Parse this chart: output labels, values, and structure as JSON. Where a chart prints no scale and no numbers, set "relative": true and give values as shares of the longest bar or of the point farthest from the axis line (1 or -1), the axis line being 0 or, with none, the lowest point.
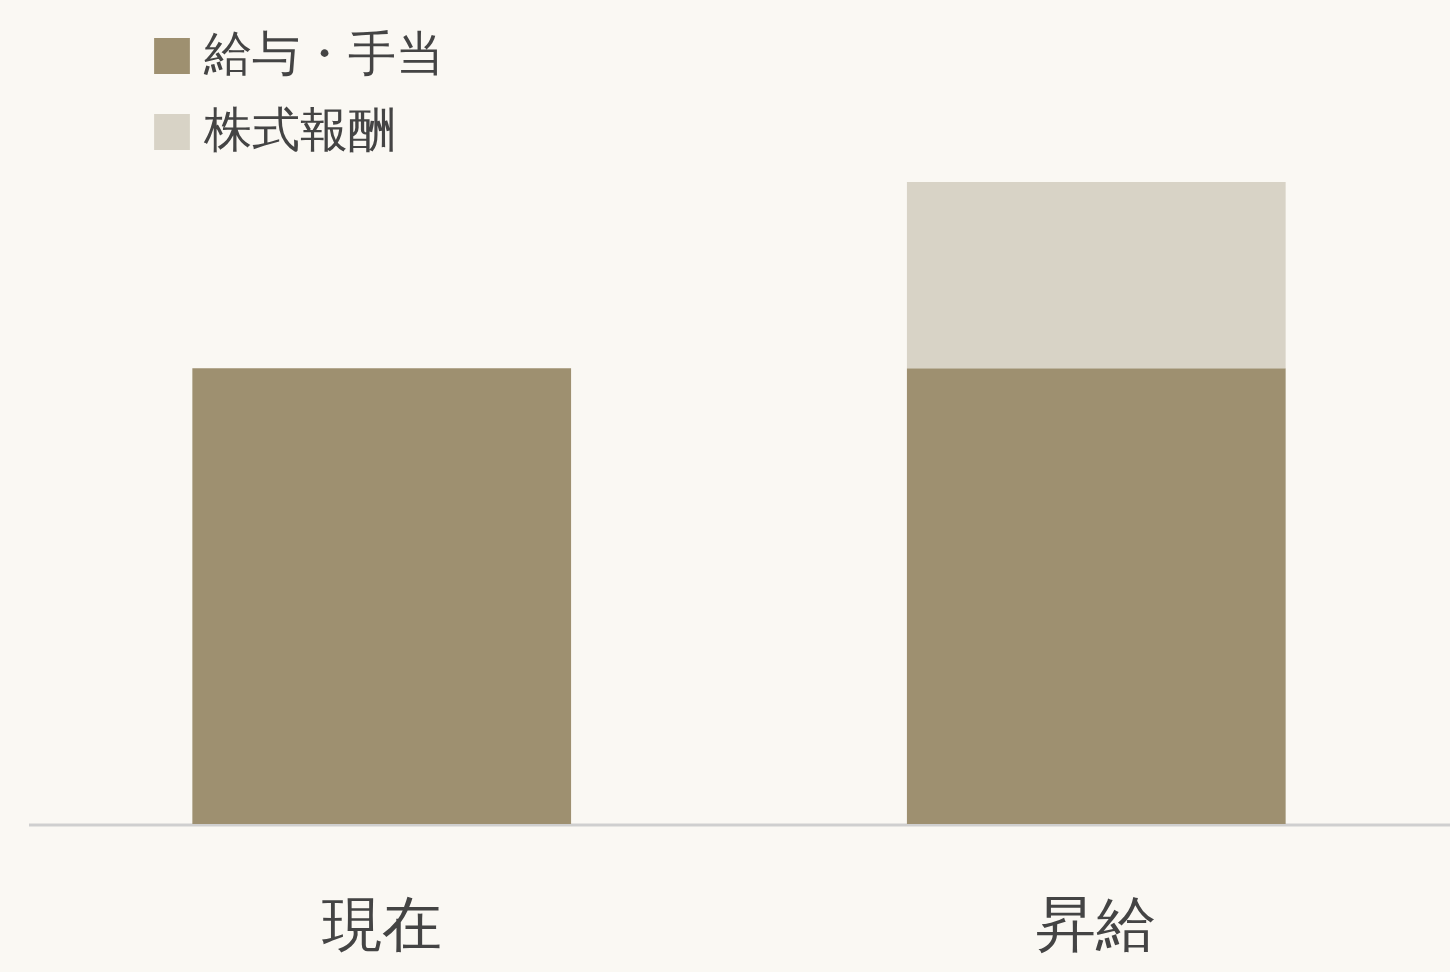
{
  "chart_data": {
    "type": "bar",
    "stacked": true,
    "relative": true,
    "legend": "top left",
    "categories": [
      "現在",
      "昇給"
    ],
    "series": [
      {
        "name": "給与・手当",
        "color": "#9e9070",
        "values": [
          0.71,
          0.71
        ]
      },
      {
        "name": "株式報酬",
        "color": "#d8d3c6",
        "values": [
          null,
          0.29
        ]
      }
    ]
  }
}
